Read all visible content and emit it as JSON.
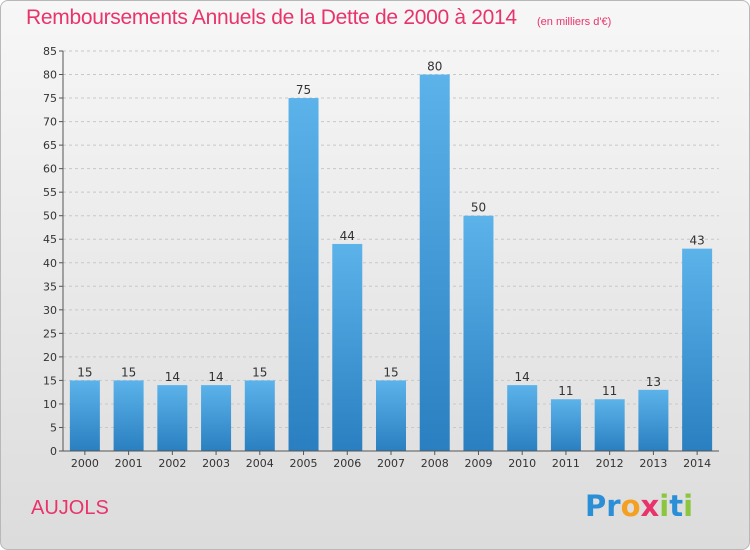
{
  "title": "Remboursements Annuels de la Dette de 2000 à 2014",
  "unit": "(en milliers d'€)",
  "commune": "AUJOLS",
  "logo": {
    "letters": [
      {
        "ch": "P",
        "color": "#2a8fd6"
      },
      {
        "ch": "r",
        "color": "#2a8fd6"
      },
      {
        "ch": "o",
        "color": "#f4a020"
      },
      {
        "ch": "x",
        "color": "#e8336b"
      },
      {
        "ch": "i",
        "color": "#8cc63f"
      },
      {
        "ch": "t",
        "color": "#2a8fd6"
      },
      {
        "ch": "i",
        "color": "#8cc63f"
      }
    ]
  },
  "colors": {
    "title": "#e8336b",
    "bar_top": "#5cb3ea",
    "bar_bottom": "#2a7fc0",
    "grid": "#c8c8c8",
    "axis_text": "#333333"
  },
  "chart_data": {
    "type": "bar",
    "categories": [
      "2000",
      "2001",
      "2002",
      "2003",
      "2004",
      "2005",
      "2006",
      "2007",
      "2008",
      "2009",
      "2010",
      "2011",
      "2012",
      "2013",
      "2014"
    ],
    "values": [
      15,
      15,
      14,
      14,
      15,
      75,
      44,
      15,
      80,
      50,
      14,
      11,
      11,
      13,
      43
    ],
    "data_labels": [
      "15",
      "15",
      "14",
      "14",
      "15",
      "75",
      "44",
      "15",
      "80",
      "50",
      "14",
      "11",
      "11",
      "13",
      "43"
    ],
    "ylim": [
      0,
      85
    ],
    "yticks": [
      0,
      5,
      10,
      15,
      20,
      25,
      30,
      35,
      40,
      45,
      50,
      55,
      60,
      65,
      70,
      75,
      80,
      85
    ],
    "grid": true,
    "xlabel": "",
    "ylabel": ""
  }
}
